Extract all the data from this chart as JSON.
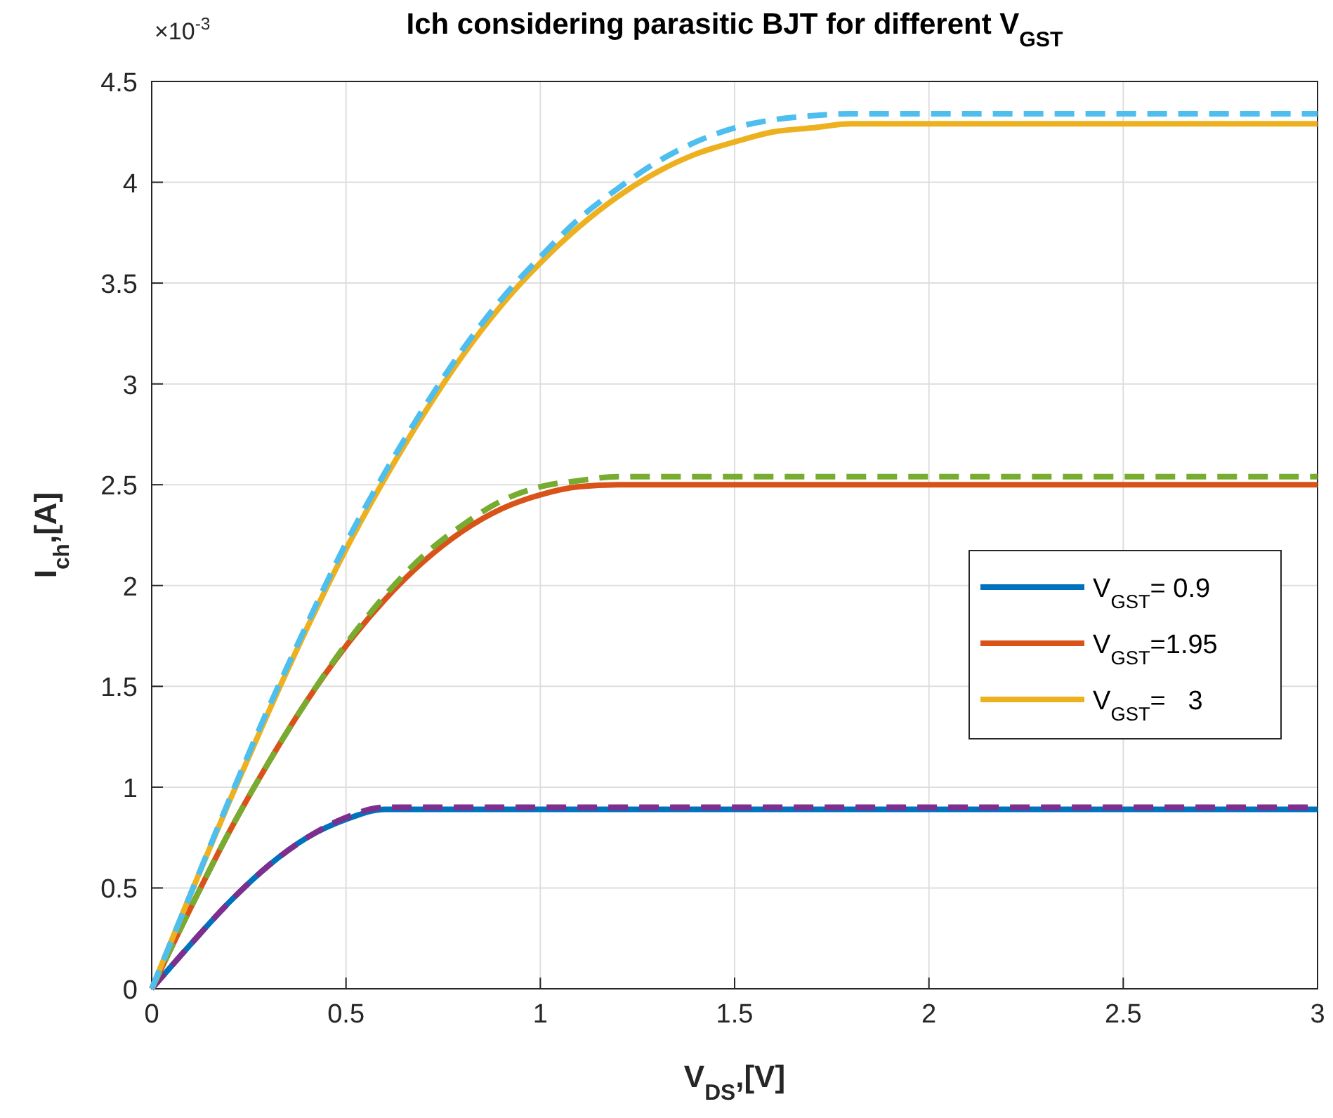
{
  "chart_data": {
    "type": "line",
    "title": "Ich considering parasitic BJT for different V$_{GST}$",
    "xlabel": "V$_{DS}$,[V]",
    "ylabel": "I$_{ch}$,[A]",
    "annotations": [
      "×10$^{-3}$"
    ],
    "xlim": [
      0,
      3
    ],
    "xticks": [
      0,
      0.5,
      1,
      1.5,
      2,
      2.5,
      3
    ],
    "ylim": [
      0,
      4.5
    ],
    "yticks": [
      0,
      0.5,
      1,
      1.5,
      2,
      2.5,
      3,
      3.5,
      4,
      4.5
    ],
    "grid": true,
    "legend": "right",
    "series": [
      {
        "name": "V$_{GST}$= 0.9",
        "color": "#0072bd",
        "line_style": "solid",
        "x": [
          0,
          0.1,
          0.2,
          0.3,
          0.4,
          0.5,
          0.6,
          0.65,
          3
        ],
        "values": [
          0,
          0.22,
          0.43,
          0.61,
          0.75,
          0.84,
          0.89,
          0.89,
          0.89
        ]
      },
      {
        "color": "#7e2f8e",
        "line_style": "dashed",
        "x": [
          0,
          0.1,
          0.2,
          0.3,
          0.4,
          0.5,
          0.6,
          0.65,
          3
        ],
        "values": [
          0,
          0.22,
          0.43,
          0.61,
          0.75,
          0.85,
          0.9,
          0.9,
          0.9
        ]
      },
      {
        "name": "V$_{GST}$=1.95",
        "color": "#d95319",
        "line_style": "solid",
        "x": [
          0,
          0.1,
          0.2,
          0.3,
          0.4,
          0.5,
          0.6,
          0.7,
          0.8,
          0.9,
          1,
          1.1,
          1.2,
          3
        ],
        "values": [
          0,
          0.4,
          0.78,
          1.12,
          1.43,
          1.7,
          1.93,
          2.12,
          2.27,
          2.38,
          2.45,
          2.49,
          2.5,
          2.5
        ]
      },
      {
        "color": "#77ac30",
        "line_style": "dashed",
        "x": [
          0,
          0.1,
          0.2,
          0.3,
          0.4,
          0.5,
          0.6,
          0.7,
          0.8,
          0.9,
          1,
          1.1,
          1.2,
          1.3,
          3
        ],
        "values": [
          0,
          0.4,
          0.78,
          1.12,
          1.43,
          1.71,
          1.95,
          2.15,
          2.3,
          2.42,
          2.49,
          2.52,
          2.54,
          2.54,
          2.54
        ]
      },
      {
        "name": "V$_{GST}$=   3",
        "color": "#edb120",
        "line_style": "solid",
        "x": [
          0,
          0.1,
          0.2,
          0.3,
          0.4,
          0.5,
          0.6,
          0.7,
          0.8,
          0.9,
          1,
          1.1,
          1.2,
          1.3,
          1.4,
          1.5,
          1.6,
          1.7,
          1.8,
          3
        ],
        "values": [
          0,
          0.47,
          0.93,
          1.37,
          1.79,
          2.18,
          2.53,
          2.85,
          3.14,
          3.39,
          3.6,
          3.78,
          3.93,
          4.05,
          4.14,
          4.2,
          4.25,
          4.27,
          4.29,
          4.29
        ]
      },
      {
        "color": "#4dbeee",
        "line_style": "dashed",
        "x": [
          0,
          0.1,
          0.2,
          0.3,
          0.4,
          0.5,
          0.6,
          0.7,
          0.8,
          0.9,
          1,
          1.1,
          1.2,
          1.3,
          1.4,
          1.5,
          1.6,
          1.7,
          1.8,
          3
        ],
        "values": [
          0,
          0.47,
          0.94,
          1.39,
          1.81,
          2.21,
          2.56,
          2.88,
          3.17,
          3.42,
          3.63,
          3.82,
          3.97,
          4.1,
          4.2,
          4.27,
          4.31,
          4.33,
          4.34,
          4.34
        ]
      }
    ]
  }
}
